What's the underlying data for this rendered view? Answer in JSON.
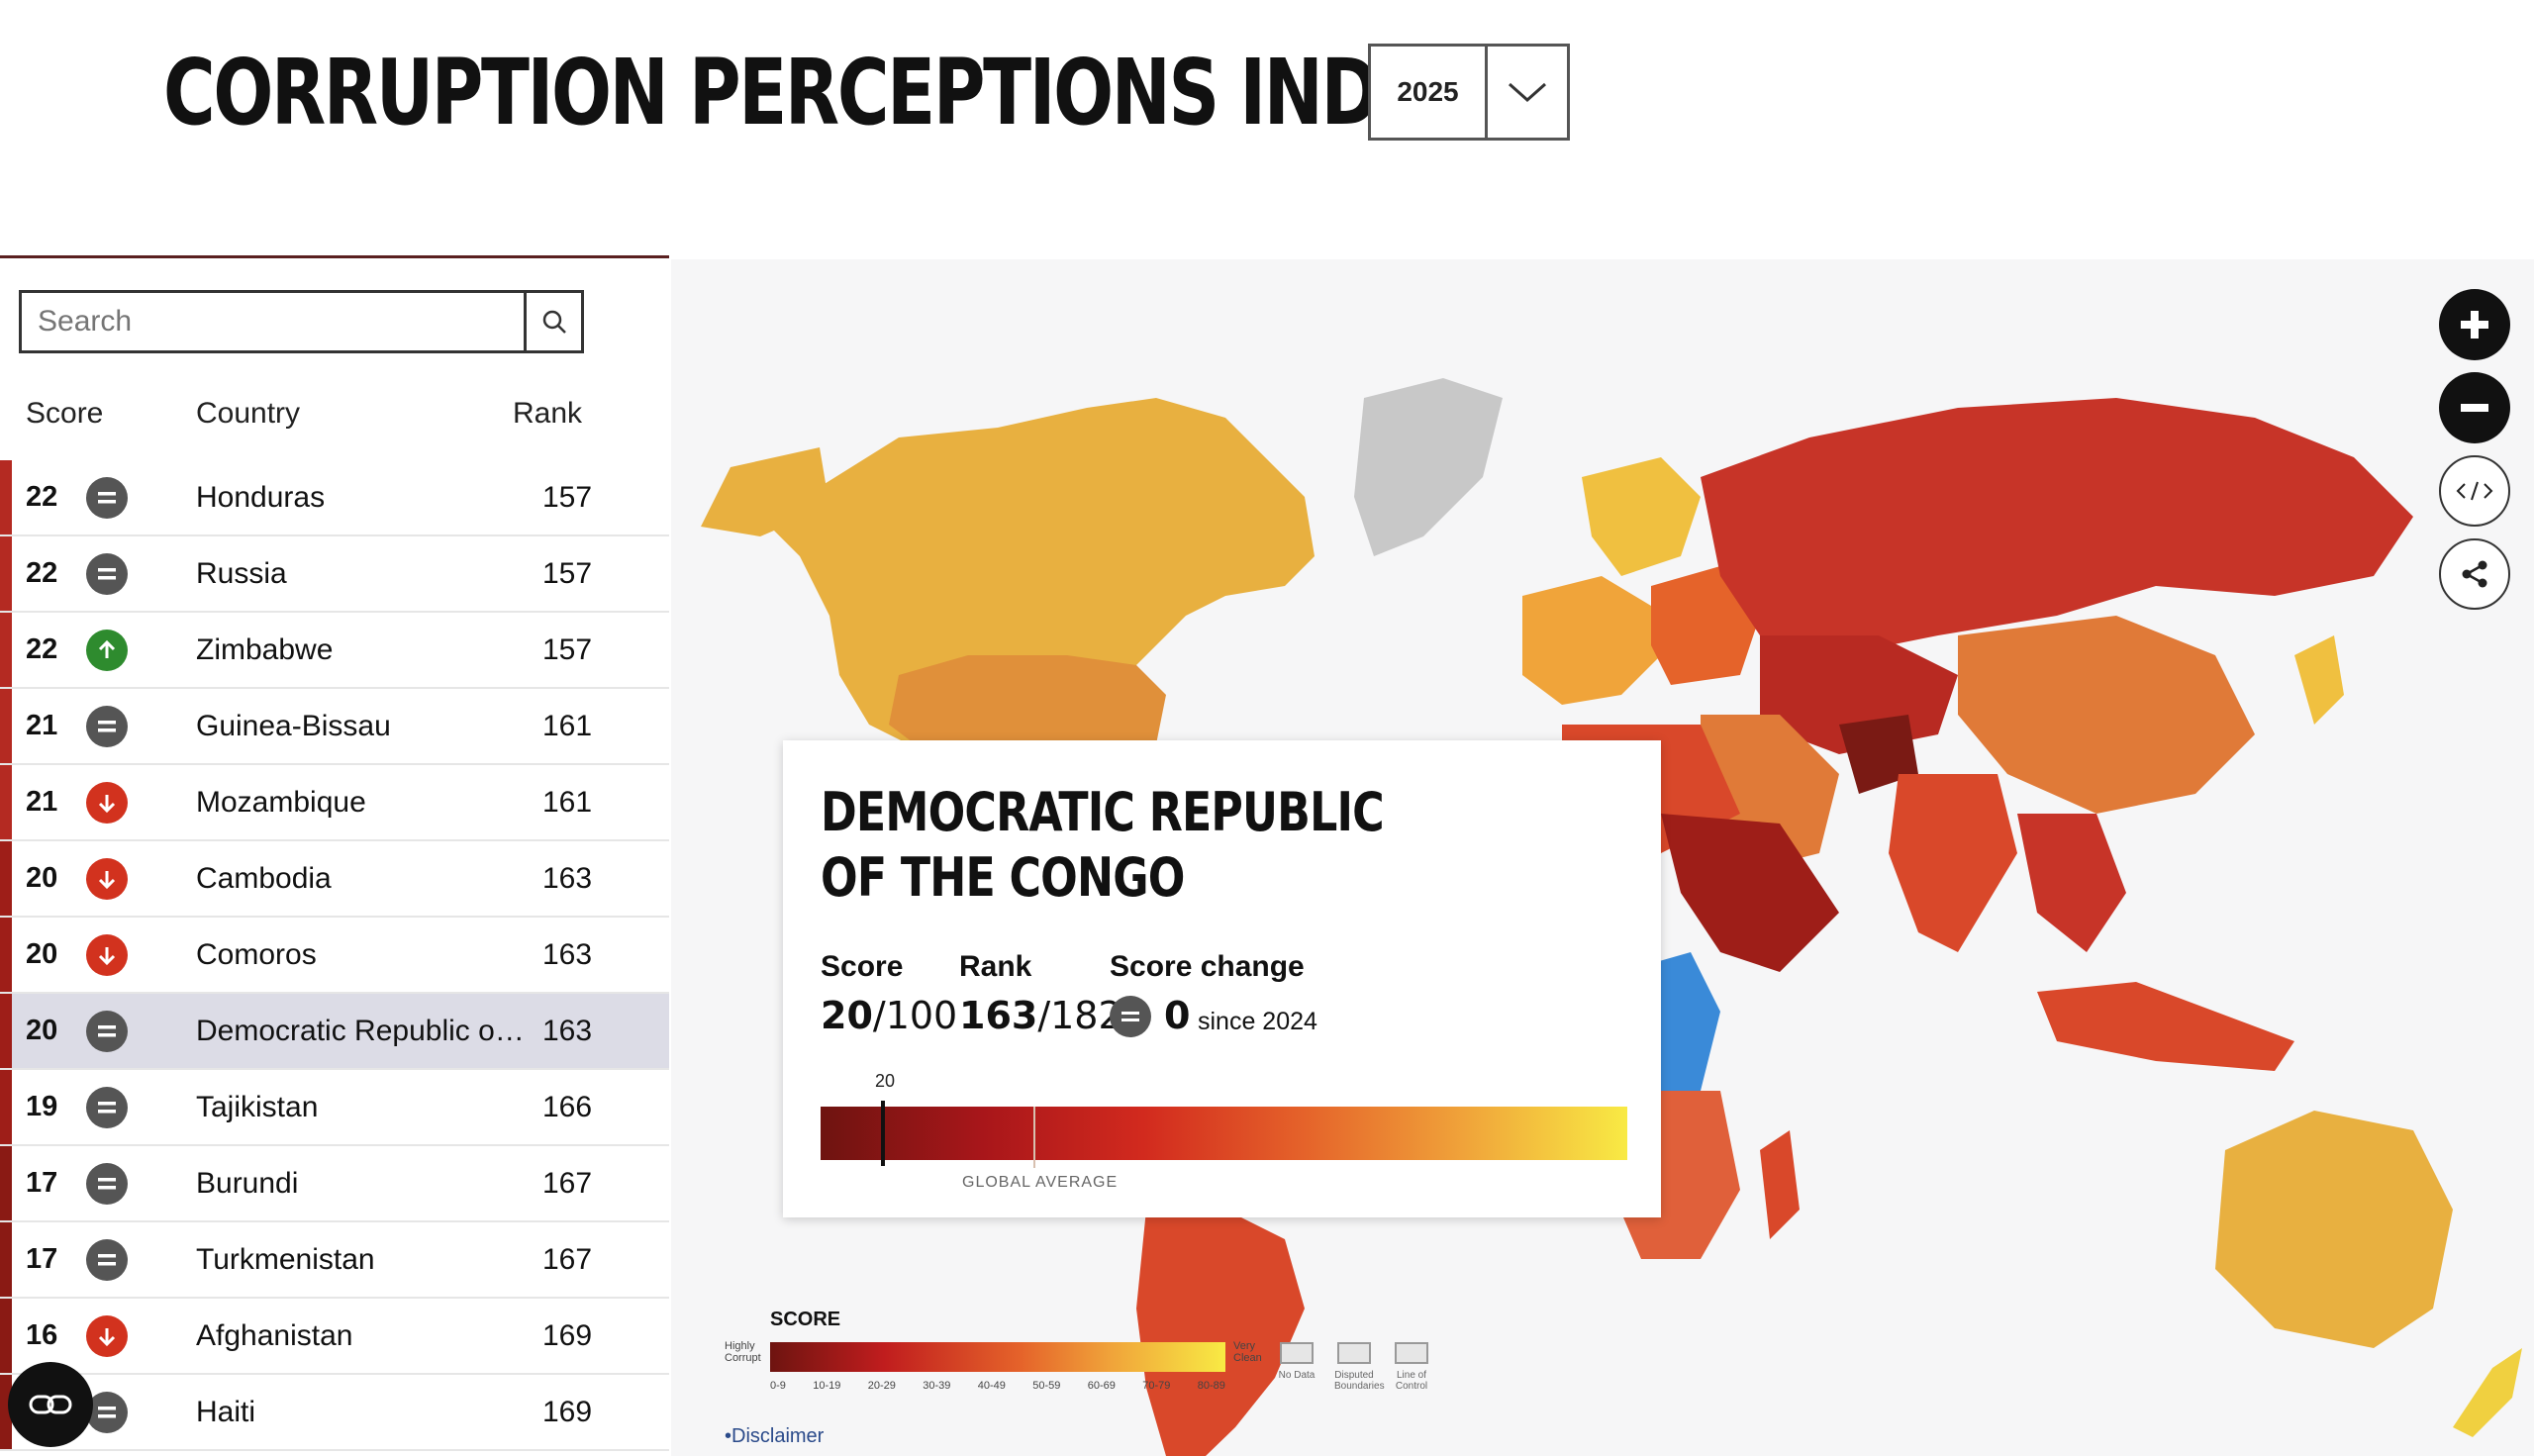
{
  "header": {
    "title": "CORRUPTION PERCEPTIONS INDEX",
    "year_selected": "2025"
  },
  "search": {
    "placeholder": "Search"
  },
  "table": {
    "headers": {
      "score": "Score",
      "country": "Country",
      "rank": "Rank"
    },
    "rows": [
      {
        "score": "22",
        "change": "same",
        "country": "Honduras",
        "rank": "157"
      },
      {
        "score": "22",
        "change": "same",
        "country": "Russia",
        "rank": "157"
      },
      {
        "score": "22",
        "change": "up",
        "country": "Zimbabwe",
        "rank": "157"
      },
      {
        "score": "21",
        "change": "same",
        "country": "Guinea-Bissau",
        "rank": "161"
      },
      {
        "score": "21",
        "change": "down",
        "country": "Mozambique",
        "rank": "161"
      },
      {
        "score": "20",
        "change": "down",
        "country": "Cambodia",
        "rank": "163"
      },
      {
        "score": "20",
        "change": "down",
        "country": "Comoros",
        "rank": "163"
      },
      {
        "score": "20",
        "change": "same",
        "country": "Democratic Republic of...",
        "rank": "163",
        "selected": true
      },
      {
        "score": "19",
        "change": "same",
        "country": "Tajikistan",
        "rank": "166"
      },
      {
        "score": "17",
        "change": "same",
        "country": "Burundi",
        "rank": "167"
      },
      {
        "score": "17",
        "change": "same",
        "country": "Turkmenistan",
        "rank": "167"
      },
      {
        "score": "16",
        "change": "down",
        "country": "Afghanistan",
        "rank": "169"
      },
      {
        "score": "",
        "change": "same",
        "country": "Haiti",
        "rank": "169"
      }
    ]
  },
  "tooltip": {
    "title": "DEMOCRATIC REPUBLIC OF THE CONGO",
    "score_label": "Score",
    "score_value": "20",
    "score_max": "/100",
    "rank_label": "Rank",
    "rank_value": "163",
    "rank_max": "/182",
    "change_label": "Score change",
    "change_value": "0",
    "change_since": "since 2024",
    "marker_label": "20",
    "global_avg_label": "GLOBAL AVERAGE"
  },
  "legend": {
    "title": "SCORE",
    "low_label": "Highly Corrupt",
    "high_label": "Very Clean",
    "ticks": [
      "0-9",
      "10-19",
      "20-29",
      "30-39",
      "40-49",
      "50-59",
      "60-69",
      "70-79",
      "80-89"
    ],
    "extras": [
      "No Data",
      "Disputed Boundaries",
      "Line of Control"
    ]
  },
  "disclaimer": "•Disclaimer",
  "colors": {
    "very_corrupt": "#6e1410",
    "corrupt": "#c01d1e",
    "mid": "#e5632a",
    "good": "#f0a43a",
    "clean": "#f8ea44",
    "selected_country": "#3a8ad8",
    "no_data": "#c8c8c8",
    "change_same": "#555555",
    "change_up": "#2e8b2e",
    "change_down": "#d2321e"
  }
}
